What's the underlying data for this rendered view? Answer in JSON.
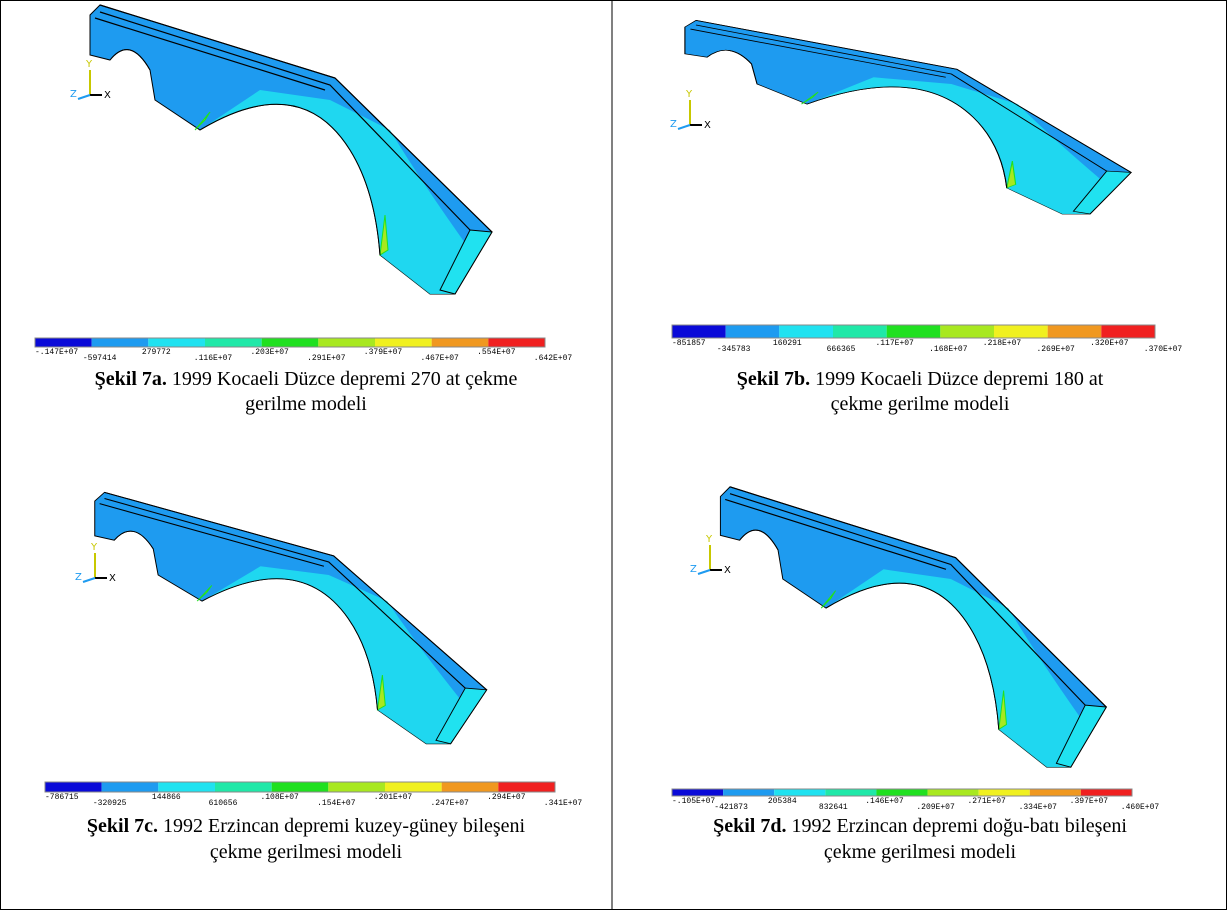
{
  "palette": [
    "#0a0ad8",
    "#1e9bf0",
    "#20e2f0",
    "#20e8a8",
    "#20e020",
    "#a8e820",
    "#f0f020",
    "#f09820",
    "#f02020"
  ],
  "panels": [
    {
      "label": "Şekil 7a.",
      "caption_line1": "1999 Kocaeli Düzce depremi 270 at  çekme",
      "caption_line2": "gerilme modeli",
      "axes": [
        "Y",
        "Z",
        "X"
      ],
      "colorbar_labels": [
        "-.147E+07",
        "-597414",
        "279772",
        ".116E+07",
        ".203E+07",
        ".291E+07",
        ".379E+07",
        ".467E+07",
        ".554E+07",
        ".642E+07"
      ]
    },
    {
      "label": "Şekil 7b.",
      "caption_line1": "1999 Kocaeli Düzce depremi 180 at",
      "caption_line2": "çekme gerilme modeli",
      "axes": [
        "Y",
        "Z",
        "X"
      ],
      "colorbar_labels": [
        "-851857",
        "-345783",
        "160291",
        "666365",
        ".117E+07",
        ".168E+07",
        ".218E+07",
        ".269E+07",
        ".320E+07",
        ".370E+07"
      ]
    },
    {
      "label": "Şekil 7c.",
      "caption_line1": "1992 Erzincan depremi kuzey-güney bileşeni",
      "caption_line2": "çekme gerilmesi modeli",
      "axes": [
        "Y",
        "Z",
        "X"
      ],
      "colorbar_labels": [
        "-786715",
        "-320925",
        "144866",
        "610656",
        ".108E+07",
        ".154E+07",
        ".201E+07",
        ".247E+07",
        ".294E+07",
        ".341E+07"
      ]
    },
    {
      "label": "Şekil 7d.",
      "caption_line1": "1992 Erzincan depremi doğu-batı  bileşeni",
      "caption_line2": "çekme gerilmesi modeli",
      "axes": [
        "Y",
        "Z",
        "X"
      ],
      "colorbar_labels": [
        "-.105E+07",
        "-421873",
        "205384",
        "832641",
        ".146E+07",
        ".209E+07",
        ".271E+07",
        ".334E+07",
        ".397E+07",
        ".460E+07"
      ]
    }
  ]
}
